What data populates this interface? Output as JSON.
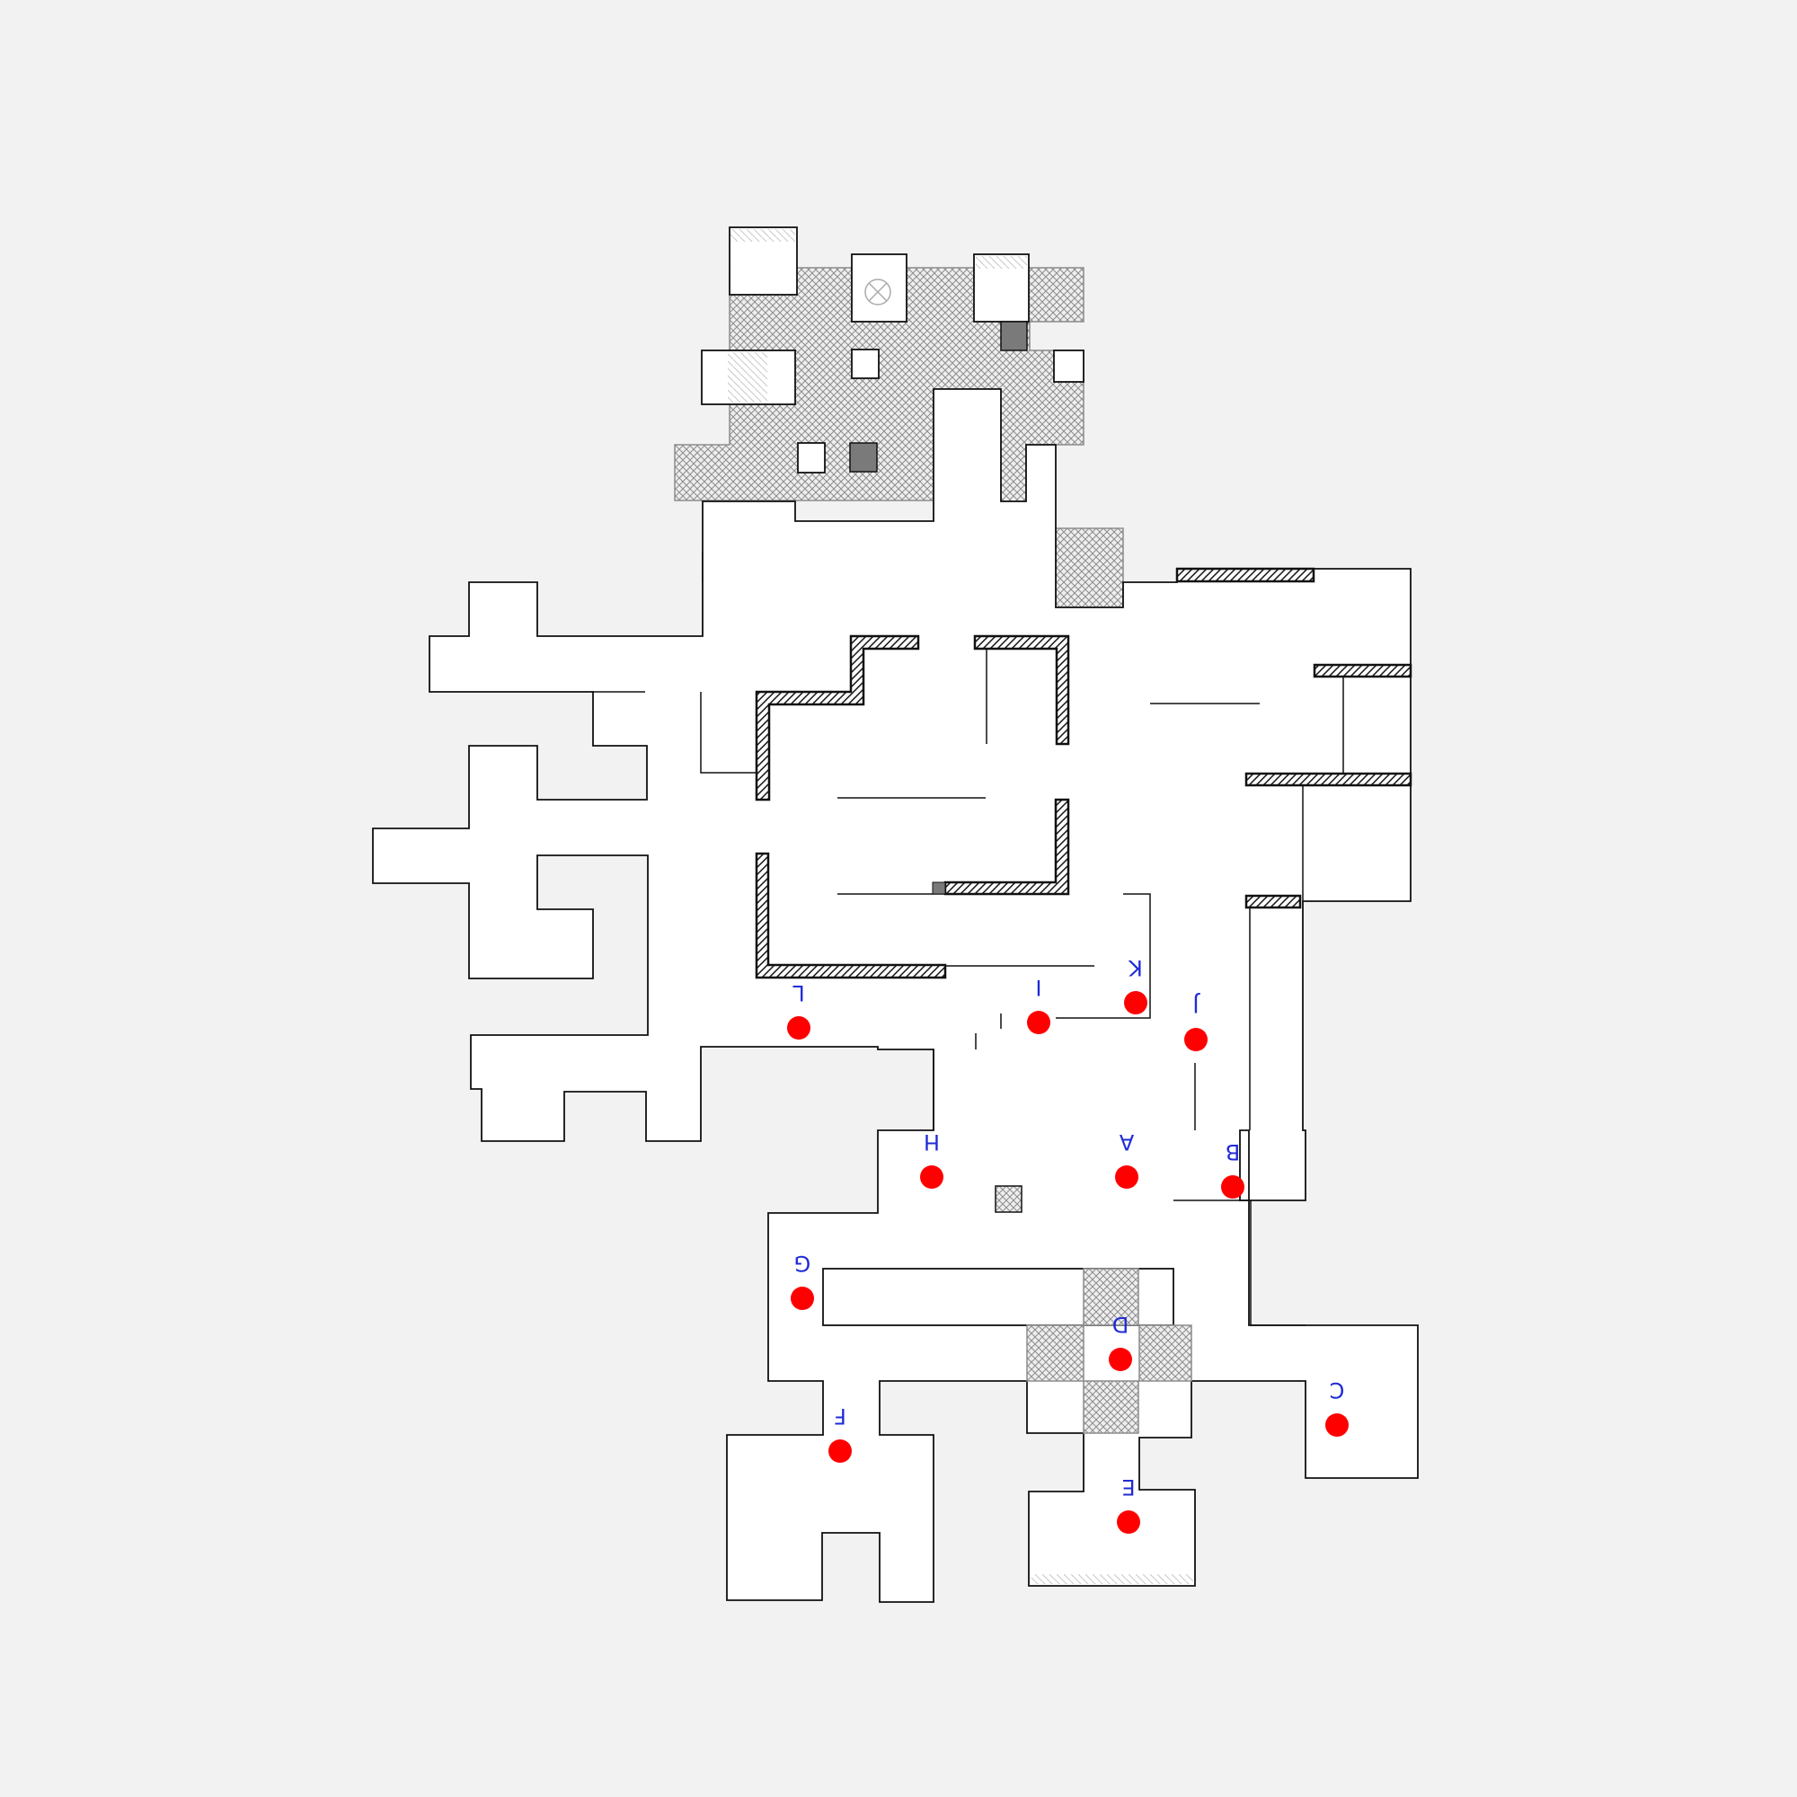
{
  "map": {
    "colors": {
      "background": "#f2f2f2",
      "floor": "#ffffff",
      "wall": "#111111",
      "hatch": "#8c8c8c",
      "marker": "#ff0000",
      "label": "#1f2bd6",
      "pillar": "#7a7a7a"
    },
    "markers": [
      {
        "id": "A",
        "label": "A"
      },
      {
        "id": "B",
        "label": "B"
      },
      {
        "id": "C",
        "label": "C"
      },
      {
        "id": "D",
        "label": "D"
      },
      {
        "id": "E",
        "label": "E"
      },
      {
        "id": "F",
        "label": "F"
      },
      {
        "id": "G",
        "label": "G"
      },
      {
        "id": "H",
        "label": "H"
      },
      {
        "id": "I",
        "label": "I"
      },
      {
        "id": "J",
        "label": "J"
      },
      {
        "id": "K",
        "label": "K"
      },
      {
        "id": "L",
        "label": "L"
      }
    ],
    "label_orientation": "upside-down"
  }
}
